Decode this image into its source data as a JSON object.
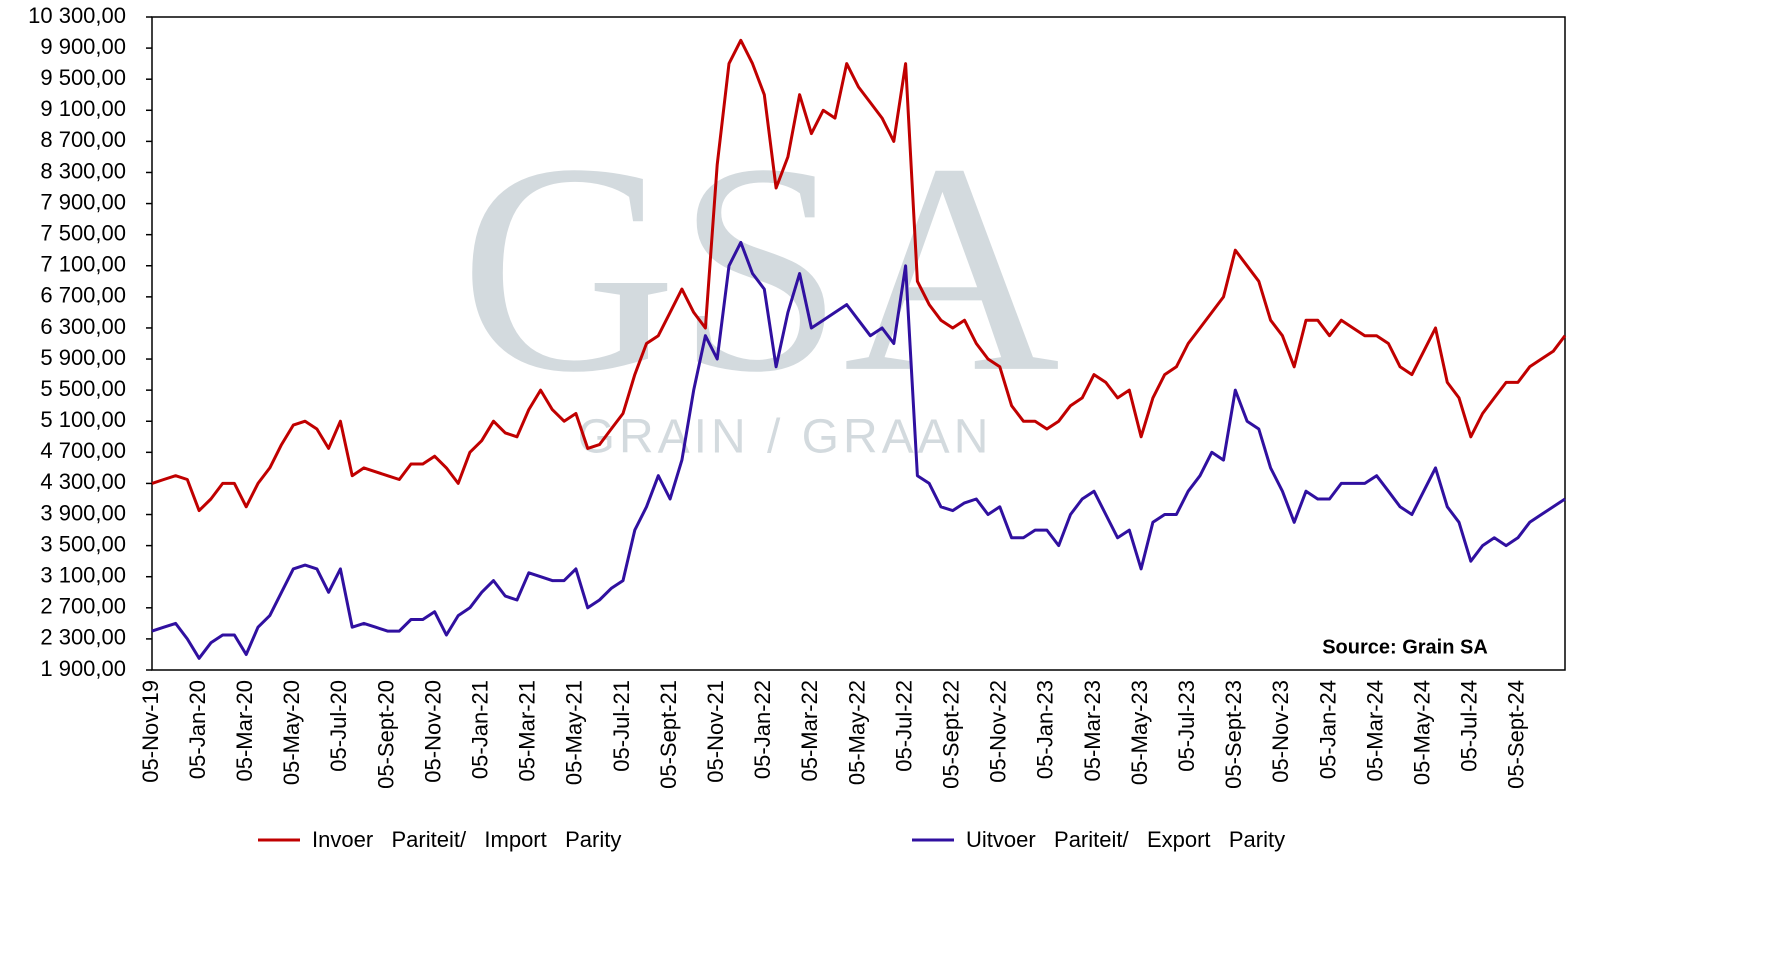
{
  "chart_data": {
    "type": "line",
    "watermark": {
      "logo": "GSA",
      "text": "GRAIN / GRAAN"
    },
    "annotation": "Source: Grain SA",
    "categories": [
      "05-Nov-19",
      null,
      null,
      null,
      "05-Jan-20",
      null,
      null,
      null,
      "05-Mar-20",
      null,
      null,
      null,
      "05-May-20",
      null,
      null,
      null,
      "05-Jul-20",
      null,
      null,
      null,
      "05-Sept-20",
      null,
      null,
      null,
      "05-Nov-20",
      null,
      null,
      null,
      "05-Jan-21",
      null,
      null,
      null,
      "05-Mar-21",
      null,
      null,
      null,
      "05-May-21",
      null,
      null,
      null,
      "05-Jul-21",
      null,
      null,
      null,
      "05-Sept-21",
      null,
      null,
      null,
      "05-Nov-21",
      null,
      null,
      null,
      "05-Jan-22",
      null,
      null,
      null,
      "05-Mar-22",
      null,
      null,
      null,
      "05-May-22",
      null,
      null,
      null,
      "05-Jul-22",
      null,
      null,
      null,
      "05-Sept-22",
      null,
      null,
      null,
      "05-Nov-22",
      null,
      null,
      null,
      "05-Jan-23",
      null,
      null,
      null,
      "05-Mar-23",
      null,
      null,
      null,
      "05-May-23",
      null,
      null,
      null,
      "05-Jul-23",
      null,
      null,
      null,
      "05-Sept-23",
      null,
      null,
      null,
      "05-Nov-23",
      null,
      null,
      null,
      "05-Jan-24",
      null,
      null,
      null,
      "05-Mar-24",
      null,
      null,
      null,
      "05-May-24",
      null,
      null,
      null,
      "05-Jul-24",
      null,
      null,
      null,
      "05-Sept-24",
      null,
      null,
      null,
      null
    ],
    "series": [
      {
        "name": "Invoer   Pariteit/   Import   Parity",
        "color": "#c00000",
        "values": [
          4300,
          4350,
          4400,
          4350,
          3950,
          4100,
          4300,
          4300,
          4000,
          4300,
          4500,
          4800,
          5050,
          5100,
          5000,
          4750,
          5100,
          4400,
          4500,
          4450,
          4400,
          4350,
          4550,
          4550,
          4650,
          4500,
          4300,
          4700,
          4850,
          5100,
          4950,
          4900,
          5250,
          5500,
          5250,
          5100,
          5200,
          4750,
          4800,
          5000,
          5200,
          5700,
          6100,
          6200,
          6500,
          6800,
          6500,
          6300,
          8400,
          9700,
          10000,
          9700,
          9300,
          8100,
          8500,
          9300,
          8800,
          9100,
          9000,
          9700,
          9400,
          9200,
          9000,
          8700,
          9700,
          6900,
          6600,
          6400,
          6300,
          6400,
          6100,
          5900,
          5800,
          5300,
          5100,
          5100,
          5000,
          5100,
          5300,
          5400,
          5700,
          5600,
          5400,
          5500,
          4900,
          5400,
          5700,
          5800,
          6100,
          6300,
          6500,
          6700,
          7300,
          7100,
          6900,
          6400,
          6200,
          5800,
          6400,
          6400,
          6200,
          6400,
          6300,
          6200,
          6200,
          6100,
          5800,
          5700,
          6000,
          6300,
          5600,
          5400,
          4900,
          5200,
          5400,
          5600,
          5600,
          5800,
          5900,
          6000,
          6200
        ]
      },
      {
        "name": "Uitvoer   Pariteit/   Export   Parity",
        "color": "#3010a0",
        "values": [
          2400,
          2450,
          2500,
          2300,
          2050,
          2250,
          2350,
          2350,
          2100,
          2450,
          2600,
          2900,
          3200,
          3250,
          3200,
          2900,
          3200,
          2450,
          2500,
          2450,
          2400,
          2400,
          2550,
          2550,
          2650,
          2350,
          2600,
          2700,
          2900,
          3050,
          2850,
          2800,
          3150,
          3100,
          3050,
          3050,
          3200,
          2700,
          2800,
          2950,
          3050,
          3700,
          4000,
          4400,
          4100,
          4600,
          5500,
          6200,
          5900,
          7100,
          7400,
          7000,
          6800,
          5800,
          6500,
          7000,
          6300,
          6400,
          6500,
          6600,
          6400,
          6200,
          6300,
          6100,
          7100,
          4400,
          4300,
          4000,
          3950,
          4050,
          4100,
          3900,
          4000,
          3600,
          3600,
          3700,
          3700,
          3500,
          3900,
          4100,
          4200,
          3900,
          3600,
          3700,
          3200,
          3800,
          3900,
          3900,
          4200,
          4400,
          4700,
          4600,
          5500,
          5100,
          5000,
          4500,
          4200,
          3800,
          4200,
          4100,
          4100,
          4300,
          4300,
          4300,
          4400,
          4200,
          4000,
          3900,
          4200,
          4500,
          4000,
          3800,
          3300,
          3500,
          3600,
          3500,
          3600,
          3800,
          3900,
          4000,
          4100
        ]
      }
    ],
    "ylim": [
      1900,
      10300
    ],
    "yticks": [
      {
        "value": 1900,
        "label": "1 900,00"
      },
      {
        "value": 2300,
        "label": "2 300,00"
      },
      {
        "value": 2700,
        "label": "2 700,00"
      },
      {
        "value": 3100,
        "label": "3 100,00"
      },
      {
        "value": 3500,
        "label": "3 500,00"
      },
      {
        "value": 3900,
        "label": "3 900,00"
      },
      {
        "value": 4300,
        "label": "4 300,00"
      },
      {
        "value": 4700,
        "label": "4 700,00"
      },
      {
        "value": 5100,
        "label": "5 100,00"
      },
      {
        "value": 5500,
        "label": "5 500,00"
      },
      {
        "value": 5900,
        "label": "5 900,00"
      },
      {
        "value": 6300,
        "label": "6 300,00"
      },
      {
        "value": 6700,
        "label": "6 700,00"
      },
      {
        "value": 7100,
        "label": "7 100,00"
      },
      {
        "value": 7500,
        "label": "7 500,00"
      },
      {
        "value": 7900,
        "label": "7 900,00"
      },
      {
        "value": 8300,
        "label": "8 300,00"
      },
      {
        "value": 8700,
        "label": "8 700,00"
      },
      {
        "value": 9100,
        "label": "9 100,00"
      },
      {
        "value": 9500,
        "label": "9 500,00"
      },
      {
        "value": 9900,
        "label": "9 900,00"
      },
      {
        "value": 10300,
        "label": "10 300,00"
      }
    ],
    "grid": false,
    "legend": "bottom"
  }
}
